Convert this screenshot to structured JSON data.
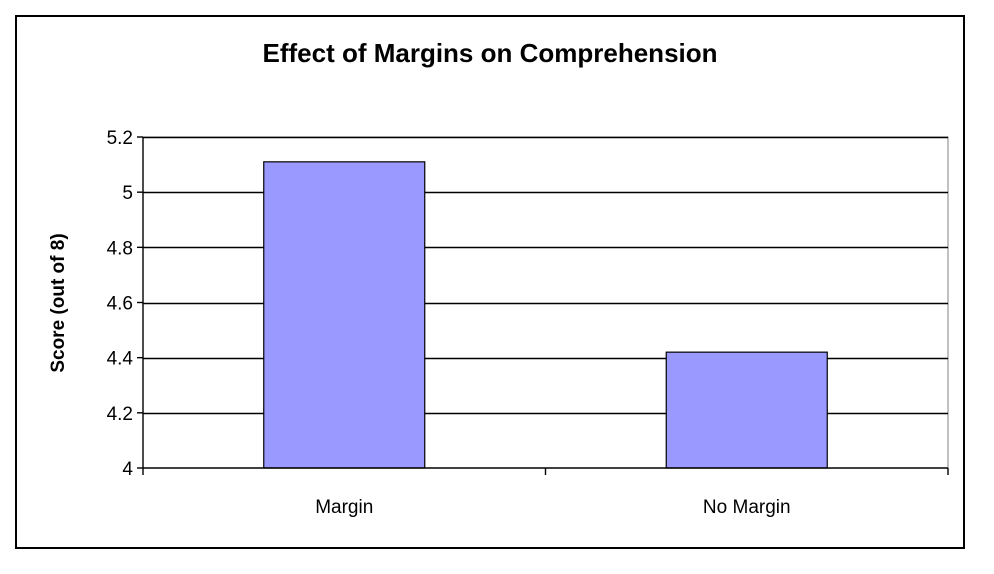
{
  "chart_data": {
    "type": "bar",
    "title": "Effect of Margins on Comprehension",
    "xlabel": "",
    "ylabel": "Score (out of 8)",
    "categories": [
      "Margin",
      "No Margin"
    ],
    "values": [
      5.11,
      4.42
    ],
    "ylim": [
      4,
      5.2
    ],
    "yticks": [
      4,
      4.2,
      4.4,
      4.6,
      4.8,
      5,
      5.2
    ],
    "ytick_labels": [
      "4",
      "4.2",
      "4.4",
      "4.6",
      "4.8",
      "5",
      "5.2"
    ],
    "grid": true,
    "legend": "none",
    "colors": {
      "bar_fill": "#9999ff",
      "bar_stroke": "#000000",
      "plot_background": "#ffffff",
      "gridline": "#000000",
      "plot_border": "#808080"
    }
  }
}
